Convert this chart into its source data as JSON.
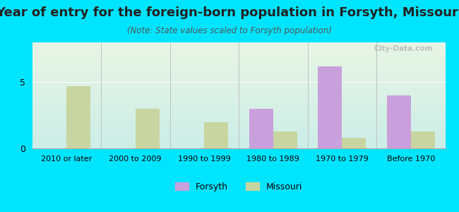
{
  "title": "Year of entry for the foreign-born population in Forsyth, Missouri",
  "subtitle": "(Note: State values scaled to Forsyth population)",
  "categories": [
    "2010 or later",
    "2000 to 2009",
    "1990 to 1999",
    "1980 to 1989",
    "1970 to 1979",
    "Before 1970"
  ],
  "forsyth_values": [
    0,
    0,
    0,
    3.0,
    6.2,
    4.0
  ],
  "missouri_values": [
    4.7,
    3.0,
    2.0,
    1.3,
    0.8,
    1.3
  ],
  "forsyth_color": "#c9a0dc",
  "missouri_color": "#c8d5a0",
  "background_color": "#00e5ff",
  "plot_bg_top": "#e8f5e4",
  "plot_bg_bottom": "#cceee8",
  "ylim": [
    0,
    8
  ],
  "yticks": [
    0,
    5
  ],
  "bar_width": 0.35,
  "legend_forsyth": "Forsyth",
  "legend_missouri": "Missouri",
  "title_fontsize": 13,
  "subtitle_fontsize": 8.5,
  "watermark": "City-Data.com"
}
